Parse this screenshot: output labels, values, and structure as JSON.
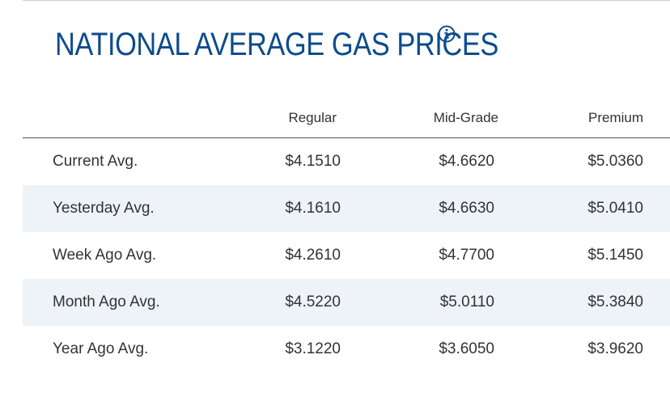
{
  "page": {
    "title": "NATIONAL AVERAGE GAS PRICES",
    "info_icon": "info-circle-icon",
    "colors": {
      "title": "#0d4c8c",
      "row_stripe": "#eef3f8",
      "text": "#333333"
    }
  },
  "table": {
    "headers": {
      "label": "",
      "regular": "Regular",
      "mid_grade": "Mid-Grade",
      "premium": "Premium"
    },
    "rows": [
      {
        "label": "Current Avg.",
        "regular": "$4.1510",
        "mid_grade": "$4.6620",
        "premium": "$5.0360"
      },
      {
        "label": "Yesterday Avg.",
        "regular": "$4.1610",
        "mid_grade": "$4.6630",
        "premium": "$5.0410"
      },
      {
        "label": "Week Ago Avg.",
        "regular": "$4.2610",
        "mid_grade": "$4.7700",
        "premium": "$5.1450"
      },
      {
        "label": "Month Ago Avg.",
        "regular": "$4.5220",
        "mid_grade": "$5.0110",
        "premium": "$5.3840"
      },
      {
        "label": "Year Ago Avg.",
        "regular": "$3.1220",
        "mid_grade": "$3.6050",
        "premium": "$3.9620"
      }
    ]
  }
}
